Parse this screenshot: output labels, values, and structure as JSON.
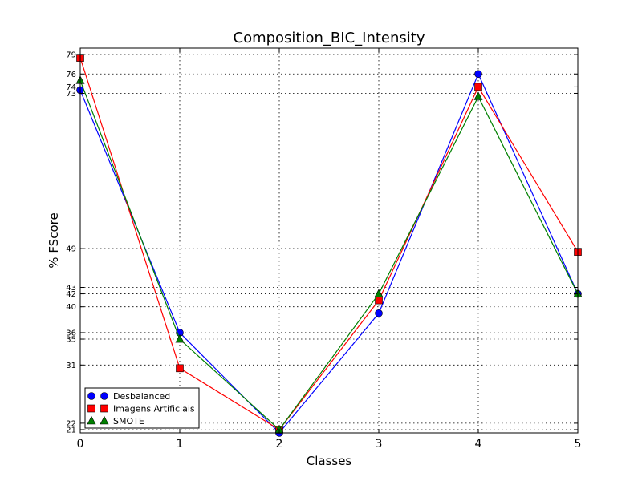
{
  "chart_data": {
    "type": "line",
    "title": "Composition_BIC_Intensity",
    "xlabel": "Classes",
    "ylabel": "% FScore",
    "x": [
      0,
      1,
      2,
      3,
      4,
      5
    ],
    "xlim": [
      0,
      5
    ],
    "ylim": [
      20.5,
      80
    ],
    "xticks": [
      "0",
      "1",
      "2",
      "3",
      "4",
      "5"
    ],
    "yticks": [
      21,
      22,
      31,
      35,
      36,
      40,
      42,
      43,
      49,
      73,
      74,
      76,
      79
    ],
    "grid": true,
    "legend_position": "lower-left",
    "series": [
      {
        "name": "Desbalanced",
        "color": "#0000ff",
        "marker": "circle",
        "values": [
          73.5,
          36,
          20.5,
          39,
          76,
          42
        ]
      },
      {
        "name": "Imagens Artificiais",
        "color": "#ff0000",
        "marker": "square",
        "values": [
          78.5,
          30.5,
          21,
          41,
          74,
          48.5
        ]
      },
      {
        "name": "SMOTE",
        "color": "#008000",
        "marker": "triangle",
        "values": [
          75,
          35,
          21,
          42,
          72.5,
          42
        ]
      }
    ]
  }
}
